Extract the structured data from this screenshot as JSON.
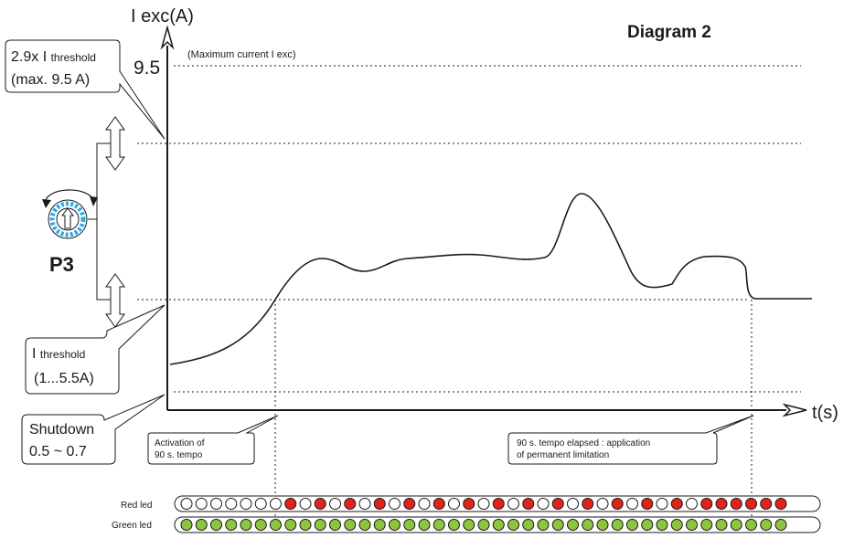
{
  "title": "Diagram 2",
  "y_axis_label": "I exc(A)",
  "x_axis_label": "t(s)",
  "y_tick_9_5": "9.5",
  "max_current_note": "(Maximum  current I exc)",
  "callout_max": {
    "line1_prefix": "2.9x I ",
    "line1_sub": "threshold",
    "line2": "(max. 9.5 A)"
  },
  "callout_threshold": {
    "line1_prefix": "I ",
    "line1_sub": "threshold",
    "line2": "(1...5.5A)"
  },
  "callout_shutdown": {
    "line1": "Shutdown",
    "line2": "0.5 ~ 0.7"
  },
  "knob_label": "P3",
  "box_activation": {
    "line1": "Activation of",
    "line2": "90 s. tempo"
  },
  "box_elapsed": {
    "line1": "90 s.  tempo elapsed : application",
    "line2": "of permanent limitation"
  },
  "led_rows": {
    "red_label": "Red led",
    "green_label": "Green led",
    "red_pattern": "00000001010101010101010101010101010111111",
    "green_pattern": "11111111111111111111111111111111111111111"
  },
  "colors": {
    "red_led": "#e0231c",
    "green_led": "#8cc63f",
    "knob_blue": "#29abe2",
    "line": "#1a1a1a"
  }
}
